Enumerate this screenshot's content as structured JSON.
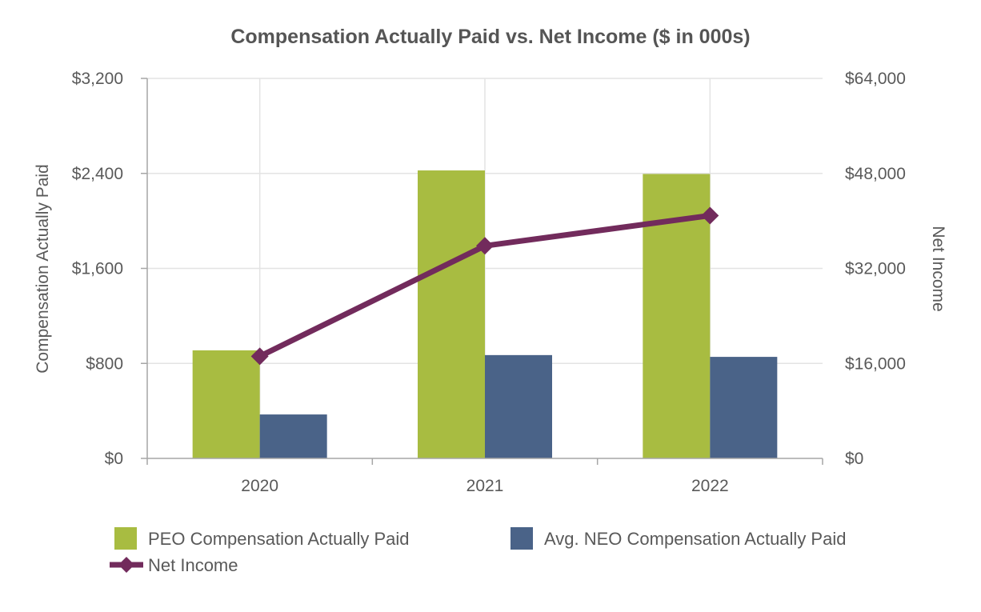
{
  "chart_data": {
    "type": "bar",
    "title": "Compensation Actually Paid vs. Net Income ($ in 000s)",
    "categories": [
      "2020",
      "2021",
      "2022"
    ],
    "ylabel": "Compensation Actually Paid",
    "y2label": "Net Income",
    "ylim": [
      0,
      3200
    ],
    "y2lim": [
      0,
      64000
    ],
    "yticks": [
      "$0",
      "$800",
      "$1,600",
      "$2,400",
      "$3,200"
    ],
    "yticks_values": [
      0,
      800,
      1600,
      2400,
      3200
    ],
    "y2ticks": [
      "$0",
      "$16,000",
      "$32,000",
      "$48,000",
      "$64,000"
    ],
    "y2ticks_values": [
      0,
      16000,
      32000,
      48000,
      64000
    ],
    "grid": true,
    "legend_position": "bottom",
    "series": [
      {
        "name": "PEO Compensation Actually Paid",
        "type": "bar",
        "axis": "left",
        "color": "#a8bc41",
        "values": [
          910,
          2425,
          2395
        ]
      },
      {
        "name": "Avg. NEO Compensation Actually Paid",
        "type": "bar",
        "axis": "left",
        "color": "#4a6388",
        "values": [
          370,
          870,
          855
        ]
      },
      {
        "name": "Net Income",
        "type": "line",
        "axis": "right",
        "marker": "diamond",
        "color": "#722b5c",
        "values": [
          17200,
          35800,
          40900
        ]
      }
    ]
  }
}
